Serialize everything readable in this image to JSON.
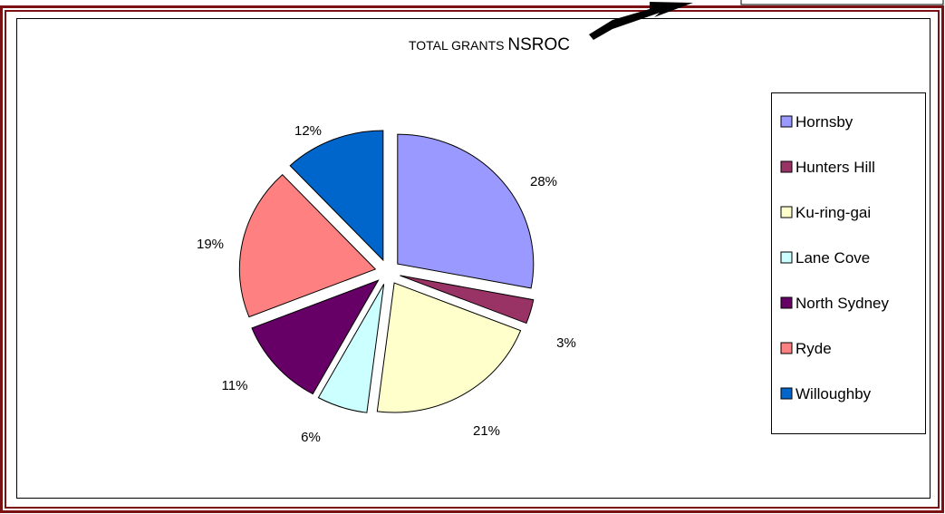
{
  "chart_data": {
    "type": "pie",
    "title": "TOTAL GRANTS NSROC",
    "exploded": true,
    "legend_position": "right",
    "series": [
      {
        "label": "Hornsby",
        "value": 28,
        "color": "#9999FF"
      },
      {
        "label": "Hunters Hill",
        "value": 3,
        "color": "#993366"
      },
      {
        "label": "Ku-ring-gai",
        "value": 21,
        "color": "#FFFFCC"
      },
      {
        "label": "Lane Cove",
        "value": 6,
        "color": "#CCFFFF"
      },
      {
        "label": "North Sydney",
        "value": 11,
        "color": "#660066"
      },
      {
        "label": "Ryde",
        "value": 19,
        "color": "#FF8080"
      },
      {
        "label": "Willoughby",
        "value": 12,
        "color": "#0066CC"
      }
    ],
    "data_labels": [
      "28%",
      "3%",
      "21%",
      "6%",
      "11%",
      "19%",
      "12%"
    ]
  },
  "colors": {
    "frame": "#7B1113",
    "arrow": "#000000"
  }
}
